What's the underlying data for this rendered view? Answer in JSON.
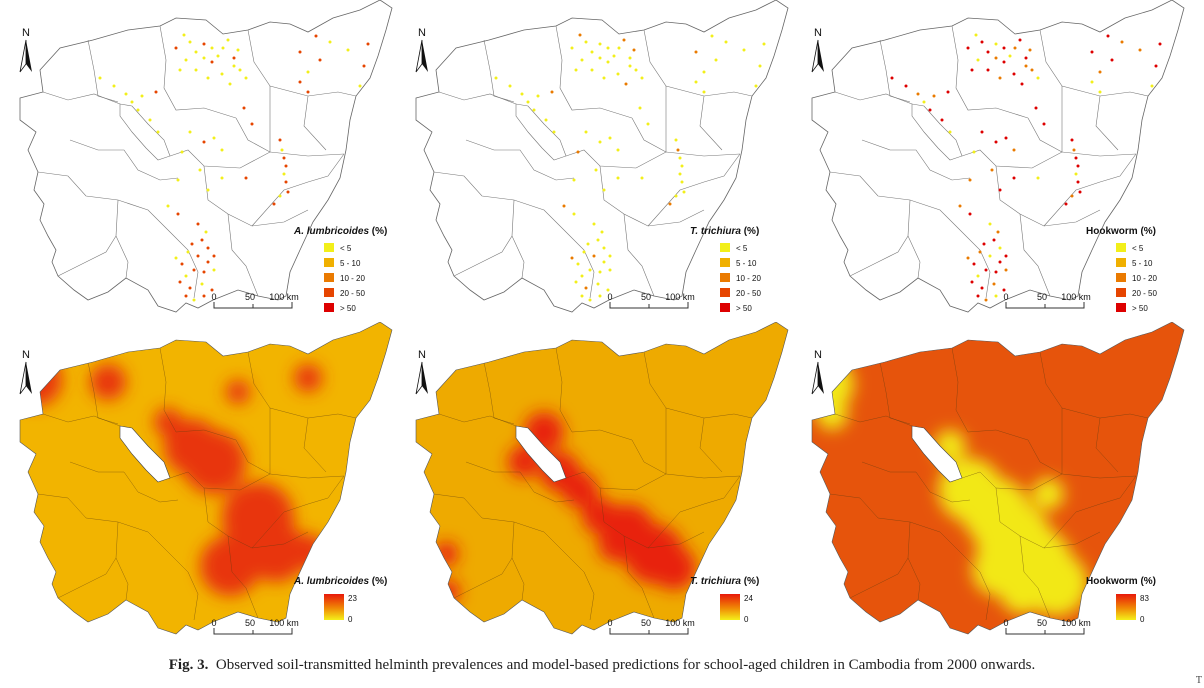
{
  "caption": {
    "label": "Fig. 3.",
    "text": "Observed soil-transmitted helminth prevalences and model-based predictions for school-aged children in Cambodia from 2000 onwards."
  },
  "corner_mark": "T",
  "north_label": "N",
  "scale_bar": {
    "t0": "0",
    "t1": "50",
    "t2": "100 km"
  },
  "observed": {
    "legend_items": [
      "< 5",
      "5 - 10",
      "10 - 20",
      "20 - 50",
      "> 50"
    ],
    "legend_colors": [
      "#f2ef1a",
      "#f0b000",
      "#ea7a00",
      "#e64500",
      "#dd0000"
    ],
    "panels": [
      {
        "species": "A. lumbricoides",
        "unit": " (%)",
        "italic": true
      },
      {
        "species": "T. trichiura",
        "unit": " (%)",
        "italic": true
      },
      {
        "species": "Hookworm",
        "unit": " (%)",
        "italic": false
      }
    ]
  },
  "predicted": {
    "panels": [
      {
        "species": "A. lumbricoides",
        "unit": " (%)",
        "italic": true,
        "max": "23",
        "min": "0",
        "base_color": "#f2b400",
        "hot_color": "#e8340a"
      },
      {
        "species": "T. trichiura",
        "unit": " (%)",
        "italic": true,
        "max": "24",
        "min": "0",
        "base_color": "#eeaa00",
        "hot_color": "#e8200a"
      },
      {
        "species": "Hookworm",
        "unit": " (%)",
        "italic": false,
        "max": "83",
        "min": "0",
        "base_color": "#e6540c",
        "hot_color": "#f2e818"
      }
    ]
  }
}
